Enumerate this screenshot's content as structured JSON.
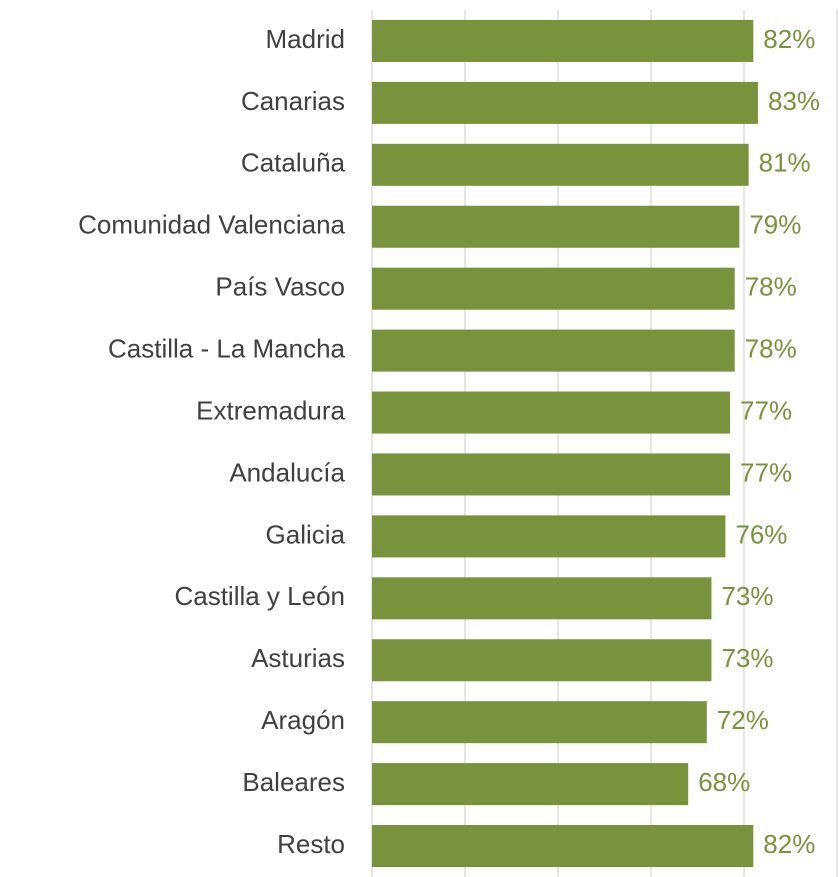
{
  "chart_data": {
    "type": "barh",
    "categories": [
      "Madrid",
      "Canarias",
      "Cataluña",
      "Comunidad Valenciana",
      "País Vasco",
      "Castilla - La Mancha",
      "Extremadura",
      "Andalucía",
      "Galicia",
      "Castilla y León",
      "Asturias",
      "Aragón",
      "Baleares",
      "Resto"
    ],
    "values": [
      82,
      83,
      81,
      79,
      78,
      78,
      77,
      77,
      76,
      73,
      73,
      72,
      68,
      82
    ],
    "value_labels": [
      "82%",
      "83%",
      "81%",
      "79%",
      "78%",
      "78%",
      "77%",
      "77%",
      "76%",
      "73%",
      "73%",
      "72%",
      "68%",
      "82%"
    ],
    "color": "#77933c",
    "label_color": "#77933c",
    "xlim": [
      0,
      100
    ],
    "xticks": [
      0,
      20,
      40,
      60,
      80,
      100
    ],
    "grid": true
  }
}
